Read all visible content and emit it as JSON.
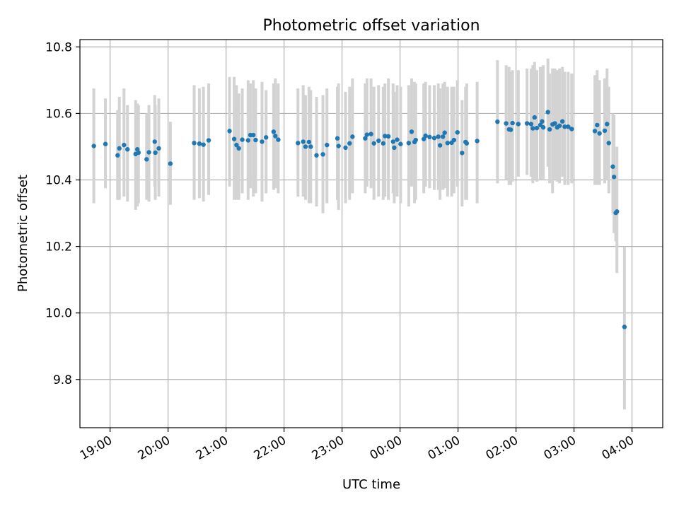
{
  "chart_data": {
    "type": "scatter",
    "title": "Photometric offset variation",
    "xlabel": "UTC time",
    "ylabel": "Photometric offset",
    "grid": true,
    "colors": {
      "point": "#1f77b4",
      "errorbar": "#d3d3d3",
      "grid": "#b0b0b0",
      "axes": "#000000"
    },
    "x_unit": "hours since 18:00 UTC",
    "xlim": [
      0.48,
      10.53
    ],
    "ylim": [
      9.655,
      10.822
    ],
    "x_ticks": [
      {
        "value": 1,
        "label": "19:00"
      },
      {
        "value": 2,
        "label": "20:00"
      },
      {
        "value": 3,
        "label": "21:00"
      },
      {
        "value": 4,
        "label": "22:00"
      },
      {
        "value": 5,
        "label": "23:00"
      },
      {
        "value": 6,
        "label": "00:00"
      },
      {
        "value": 7,
        "label": "01:00"
      },
      {
        "value": 8,
        "label": "02:00"
      },
      {
        "value": 9,
        "label": "03:00"
      },
      {
        "value": 10,
        "label": "04:00"
      }
    ],
    "y_ticks": [
      {
        "value": 9.8,
        "label": "9.8"
      },
      {
        "value": 10.0,
        "label": "10.0"
      },
      {
        "value": 10.2,
        "label": "10.2"
      },
      {
        "value": 10.4,
        "label": "10.4"
      },
      {
        "value": 10.6,
        "label": "10.6"
      },
      {
        "value": 10.8,
        "label": "10.8"
      }
    ],
    "series": [
      {
        "name": "photometric offset",
        "points": [
          [
            0.72,
            10.502,
            10.33,
            10.675
          ],
          [
            0.92,
            10.508,
            10.375,
            10.645
          ],
          [
            1.13,
            10.474,
            10.34,
            10.61
          ],
          [
            1.16,
            10.495,
            10.34,
            10.65
          ],
          [
            1.24,
            10.505,
            10.35,
            10.675
          ],
          [
            1.3,
            10.492,
            10.335,
            10.625
          ],
          [
            1.44,
            10.478,
            10.31,
            10.64
          ],
          [
            1.47,
            10.492,
            10.32,
            10.63
          ],
          [
            1.49,
            10.482,
            10.33,
            10.625
          ],
          [
            1.63,
            10.462,
            10.34,
            10.6
          ],
          [
            1.67,
            10.483,
            10.335,
            10.625
          ],
          [
            1.77,
            10.515,
            10.38,
            10.655
          ],
          [
            1.78,
            10.482,
            10.34,
            10.625
          ],
          [
            1.84,
            10.495,
            10.35,
            10.645
          ],
          [
            2.04,
            10.449,
            10.325,
            10.575
          ],
          [
            2.45,
            10.511,
            10.34,
            10.685
          ],
          [
            2.54,
            10.509,
            10.345,
            10.675
          ],
          [
            2.61,
            10.506,
            10.335,
            10.68
          ],
          [
            2.7,
            10.519,
            10.355,
            10.69
          ],
          [
            3.06,
            10.547,
            10.38,
            10.71
          ],
          [
            3.14,
            10.523,
            10.34,
            10.71
          ],
          [
            3.18,
            10.505,
            10.34,
            10.685
          ],
          [
            3.22,
            10.495,
            10.34,
            10.66
          ],
          [
            3.28,
            10.521,
            10.36,
            10.675
          ],
          [
            3.38,
            10.519,
            10.34,
            10.7
          ],
          [
            3.42,
            10.535,
            10.375,
            10.69
          ],
          [
            3.47,
            10.535,
            10.35,
            10.7
          ],
          [
            3.51,
            10.52,
            10.36,
            10.675
          ],
          [
            3.62,
            10.515,
            10.335,
            10.695
          ],
          [
            3.69,
            10.528,
            10.36,
            10.67
          ],
          [
            3.82,
            10.545,
            10.37,
            10.69
          ],
          [
            3.85,
            10.532,
            10.375,
            10.705
          ],
          [
            3.9,
            10.521,
            10.36,
            10.69
          ],
          [
            4.24,
            10.511,
            10.35,
            10.675
          ],
          [
            4.33,
            10.515,
            10.35,
            10.685
          ],
          [
            4.37,
            10.5,
            10.34,
            10.655
          ],
          [
            4.43,
            10.514,
            10.33,
            10.68
          ],
          [
            4.46,
            10.5,
            10.33,
            10.67
          ],
          [
            4.56,
            10.474,
            10.32,
            10.65
          ],
          [
            4.67,
            10.477,
            10.3,
            10.655
          ],
          [
            4.74,
            10.505,
            10.33,
            10.675
          ],
          [
            4.92,
            10.525,
            10.34,
            10.68
          ],
          [
            4.94,
            10.502,
            10.31,
            10.69
          ],
          [
            5.06,
            10.497,
            10.33,
            10.665
          ],
          [
            5.13,
            10.51,
            10.34,
            10.68
          ],
          [
            5.18,
            10.53,
            10.36,
            10.705
          ],
          [
            5.4,
            10.525,
            10.36,
            10.69
          ],
          [
            5.43,
            10.536,
            10.38,
            10.705
          ],
          [
            5.5,
            10.538,
            10.375,
            10.705
          ],
          [
            5.55,
            10.51,
            10.34,
            10.68
          ],
          [
            5.63,
            10.518,
            10.35,
            10.685
          ],
          [
            5.71,
            10.51,
            10.34,
            10.68
          ],
          [
            5.74,
            10.532,
            10.35,
            10.69
          ],
          [
            5.8,
            10.531,
            10.34,
            10.705
          ],
          [
            5.88,
            10.515,
            10.36,
            10.69
          ],
          [
            5.9,
            10.497,
            10.33,
            10.665
          ],
          [
            5.95,
            10.521,
            10.35,
            10.685
          ],
          [
            6.01,
            10.508,
            10.33,
            10.68
          ],
          [
            6.15,
            10.511,
            10.32,
            10.685
          ],
          [
            6.2,
            10.545,
            10.38,
            10.705
          ],
          [
            6.25,
            10.514,
            10.33,
            10.695
          ],
          [
            6.27,
            10.52,
            10.34,
            10.69
          ],
          [
            6.41,
            10.523,
            10.36,
            10.69
          ],
          [
            6.44,
            10.533,
            10.38,
            10.695
          ],
          [
            6.51,
            10.529,
            10.375,
            10.685
          ],
          [
            6.59,
            10.526,
            10.37,
            10.685
          ],
          [
            6.66,
            10.53,
            10.37,
            10.69
          ],
          [
            6.69,
            10.504,
            10.34,
            10.675
          ],
          [
            6.74,
            10.53,
            10.37,
            10.69
          ],
          [
            6.77,
            10.542,
            10.375,
            10.695
          ],
          [
            6.82,
            10.511,
            10.35,
            10.68
          ],
          [
            6.89,
            10.512,
            10.35,
            10.68
          ],
          [
            6.93,
            10.52,
            10.36,
            10.68
          ],
          [
            6.99,
            10.543,
            10.38,
            10.7
          ],
          [
            7.07,
            10.481,
            10.32,
            10.64
          ],
          [
            7.13,
            10.514,
            10.34,
            10.68
          ],
          [
            7.15,
            10.51,
            10.34,
            10.69
          ],
          [
            7.33,
            10.517,
            10.33,
            10.695
          ],
          [
            7.68,
            10.575,
            10.39,
            10.76
          ],
          [
            7.83,
            10.57,
            10.4,
            10.745
          ],
          [
            7.88,
            10.552,
            10.385,
            10.74
          ],
          [
            7.91,
            10.551,
            10.385,
            10.725
          ],
          [
            7.94,
            10.571,
            10.395,
            10.73
          ],
          [
            8.04,
            10.568,
            10.41,
            10.73
          ],
          [
            8.19,
            10.57,
            10.415,
            10.735
          ],
          [
            8.26,
            10.568,
            10.41,
            10.735
          ],
          [
            8.29,
            10.555,
            10.39,
            10.745
          ],
          [
            8.32,
            10.588,
            10.4,
            10.755
          ],
          [
            8.36,
            10.556,
            10.395,
            10.73
          ],
          [
            8.42,
            10.565,
            10.4,
            10.74
          ],
          [
            8.45,
            10.576,
            10.41,
            10.74
          ],
          [
            8.47,
            10.558,
            10.4,
            10.745
          ],
          [
            8.55,
            10.604,
            10.44,
            10.765
          ],
          [
            8.58,
            10.552,
            10.39,
            10.72
          ],
          [
            8.63,
            10.567,
            10.36,
            10.735
          ],
          [
            8.67,
            10.57,
            10.4,
            10.735
          ],
          [
            8.71,
            10.558,
            10.395,
            10.73
          ],
          [
            8.75,
            10.563,
            10.39,
            10.735
          ],
          [
            8.8,
            10.576,
            10.41,
            10.74
          ],
          [
            8.84,
            10.56,
            10.385,
            10.725
          ],
          [
            8.9,
            10.56,
            10.385,
            10.725
          ],
          [
            8.96,
            10.553,
            10.39,
            10.72
          ],
          [
            9.36,
            10.547,
            10.385,
            10.715
          ],
          [
            9.4,
            10.565,
            10.385,
            10.73
          ],
          [
            9.44,
            10.54,
            10.385,
            10.7
          ],
          [
            9.53,
            10.548,
            10.39,
            10.705
          ],
          [
            9.57,
            10.568,
            10.4,
            10.735
          ],
          [
            9.6,
            10.511,
            10.36,
            10.68
          ],
          [
            9.67,
            10.44,
            10.3,
            10.6
          ],
          [
            9.69,
            10.409,
            10.24,
            10.595
          ],
          [
            9.72,
            10.301,
            10.215,
            10.44
          ],
          [
            9.74,
            10.305,
            10.12,
            10.5
          ],
          [
            9.87,
            9.958,
            9.71,
            10.2
          ]
        ]
      }
    ]
  }
}
